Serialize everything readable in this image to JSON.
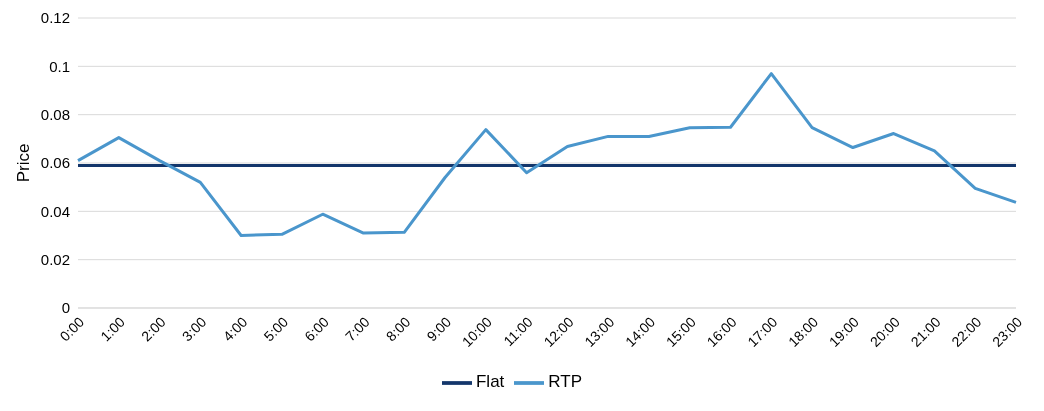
{
  "chart_data": {
    "type": "line",
    "ylabel": "Price",
    "categories": [
      "0:00",
      "1:00",
      "2:00",
      "3:00",
      "4:00",
      "5:00",
      "6:00",
      "7:00",
      "8:00",
      "9:00",
      "10:00",
      "11:00",
      "12:00",
      "13:00",
      "14:00",
      "15:00",
      "16:00",
      "17:00",
      "18:00",
      "19:00",
      "20:00",
      "21:00",
      "22:00",
      "23:00"
    ],
    "series": [
      {
        "name": "Flat",
        "color": "#13366b",
        "values": [
          0.059,
          0.059,
          0.059,
          0.059,
          0.059,
          0.059,
          0.059,
          0.059,
          0.059,
          0.059,
          0.059,
          0.059,
          0.059,
          0.059,
          0.059,
          0.059,
          0.059,
          0.059,
          0.059,
          0.059,
          0.059,
          0.059,
          0.059,
          0.059
        ]
      },
      {
        "name": "RTP",
        "color": "#4a96cc",
        "values": [
          0.061,
          0.0705,
          0.061,
          0.052,
          0.03,
          0.0305,
          0.0388,
          0.031,
          0.0313,
          0.054,
          0.0738,
          0.056,
          0.0668,
          0.071,
          0.071,
          0.0746,
          0.0748,
          0.097,
          0.0746,
          0.0664,
          0.0722,
          0.065,
          0.0495,
          0.0437
        ]
      }
    ],
    "ylim": [
      0,
      0.12
    ],
    "yticks": [
      0,
      0.02,
      0.04,
      0.06,
      0.08,
      0.1,
      0.12
    ],
    "grid": "y",
    "legend": "bottom",
    "marker": "none",
    "line_style": "solid"
  }
}
